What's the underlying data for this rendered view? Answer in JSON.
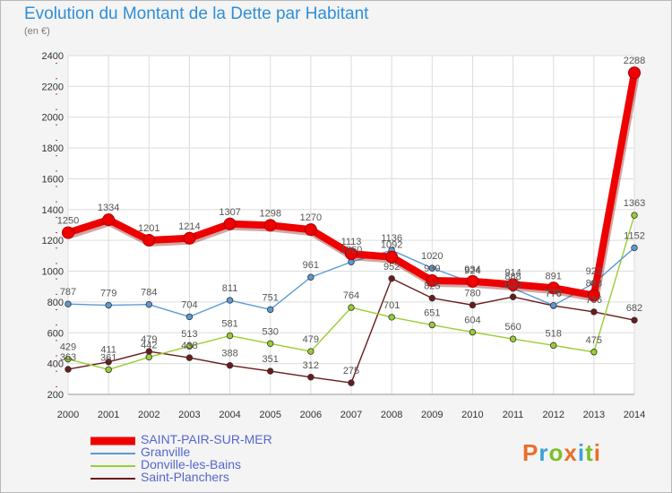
{
  "title": "Evolution du Montant de la Dette par Habitant",
  "subtitle": "(en €)",
  "logo": {
    "text": "Proxiti",
    "colors": [
      "#e8702a",
      "#3aa0d8",
      "#7cbf2a",
      "#e8702a",
      "#3aa0d8",
      "#7cbf2a",
      "#e8702a"
    ]
  },
  "chart_data": {
    "type": "line",
    "title": "Evolution du Montant de la Dette par Habitant",
    "subtitle": "(en €)",
    "x": [
      2000,
      2001,
      2002,
      2003,
      2004,
      2005,
      2006,
      2007,
      2008,
      2009,
      2010,
      2011,
      2012,
      2013,
      2014
    ],
    "ylim": [
      200,
      2400
    ],
    "yticks": [
      200,
      400,
      600,
      800,
      1000,
      1200,
      1400,
      1600,
      1800,
      2000,
      2200,
      2400
    ],
    "grid": true,
    "legend_position": "bottom-left",
    "series": [
      {
        "name": "SAINT-PAIR-SUR-MER",
        "color": "#ee0000",
        "values": [
          1250,
          1334,
          1201,
          1214,
          1307,
          1298,
          1270,
          1113,
          1092,
          939,
          934,
          914,
          891,
          843,
          2288
        ],
        "labels": [
          "1250",
          "1334",
          "1201",
          "1214",
          "1307",
          "1298",
          "1270",
          "1113",
          "1092",
          "939",
          "934",
          "914",
          "891",
          "843",
          "2288"
        ]
      },
      {
        "name": "Granville",
        "color": "#5b9bd5",
        "values": [
          787,
          779,
          784,
          704,
          811,
          751,
          961,
          1060,
          1136,
          1020,
          924,
          888,
          778,
          922,
          1152
        ],
        "labels": [
          "787",
          "779",
          "784",
          "704",
          "811",
          "751",
          "961",
          "1060",
          "1136",
          "1020",
          "924",
          "888",
          "778",
          "922",
          "1152"
        ]
      },
      {
        "name": "Donville-les-Bains",
        "color": "#9acd32",
        "values": [
          429,
          361,
          442,
          513,
          581,
          530,
          479,
          764,
          701,
          651,
          604,
          560,
          518,
          475,
          1363
        ],
        "labels": [
          "429",
          "361",
          "442",
          "513",
          "581",
          "530",
          "479",
          "764",
          "701",
          "651",
          "604",
          "560",
          "518",
          "475",
          "1363"
        ]
      },
      {
        "name": "Saint-Planchers",
        "color": "#6b1a1a",
        "values": [
          363,
          411,
          479,
          438,
          388,
          351,
          312,
          275,
          952,
          825,
          780,
          833,
          776,
          736,
          682
        ],
        "labels": [
          "363",
          "411",
          "479",
          "438",
          "388",
          "351",
          "312",
          "275",
          "952",
          "825",
          "780",
          "833",
          "776",
          "736",
          "682"
        ]
      }
    ]
  }
}
